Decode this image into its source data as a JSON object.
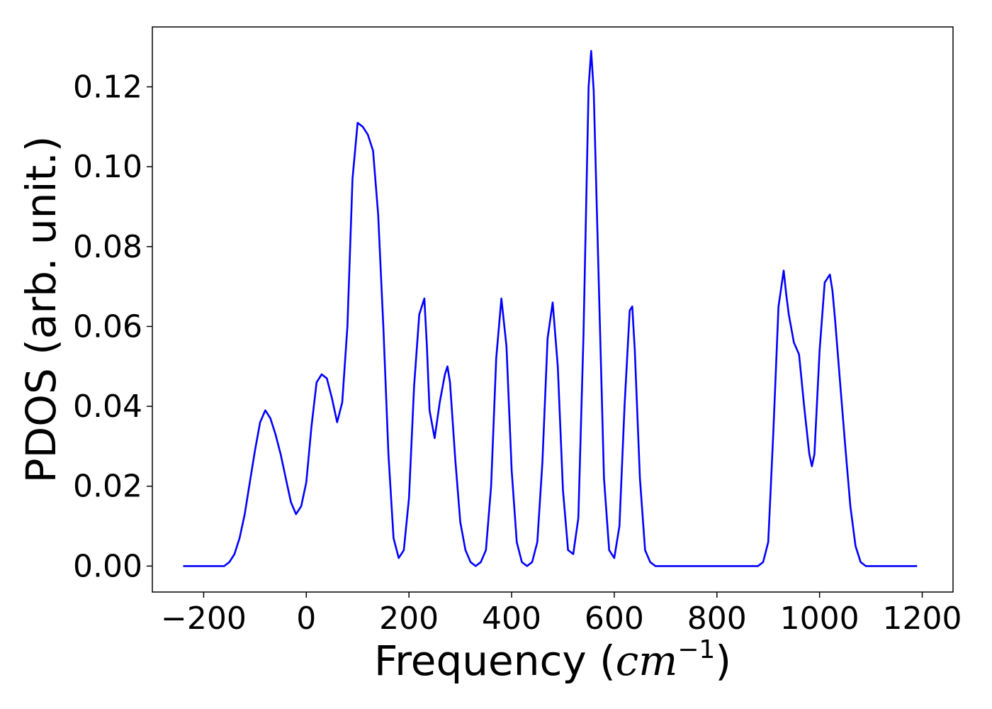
{
  "chart_data": {
    "type": "line",
    "title": "",
    "xlabel": "Frequency (",
    "xlabel_math": "cm",
    "xlabel_sup": "−1",
    "xlabel_close": ")",
    "ylabel": "PDOS (arb. unit.)",
    "xlim": [
      -300,
      1260
    ],
    "ylim": [
      -0.0065,
      0.135
    ],
    "xticks": [
      -200,
      0,
      200,
      400,
      600,
      800,
      1000,
      1200
    ],
    "xtick_labels": [
      "−200",
      "0",
      "200",
      "400",
      "600",
      "800",
      "1000",
      "1200"
    ],
    "yticks": [
      0.0,
      0.02,
      0.04,
      0.06,
      0.08,
      0.1,
      0.12
    ],
    "ytick_labels": [
      "0.00",
      "0.02",
      "0.04",
      "0.06",
      "0.08",
      "0.10",
      "0.12"
    ],
    "grid": false,
    "legend": "none",
    "line_color": "#0000ff",
    "series": [
      {
        "x": [
          -240,
          -160,
          -150,
          -140,
          -130,
          -120,
          -110,
          -100,
          -90,
          -80,
          -70,
          -60,
          -50,
          -40,
          -30,
          -20,
          -10,
          0,
          10,
          20,
          30,
          40,
          50,
          60,
          70,
          80,
          90,
          100,
          110,
          120,
          130,
          140,
          150,
          160,
          170,
          180,
          190,
          200,
          210,
          220,
          230,
          235,
          240,
          250,
          260,
          270,
          275,
          280,
          290,
          300,
          310,
          320,
          330,
          340,
          350,
          360,
          370,
          380,
          390,
          400,
          410,
          420,
          430,
          440,
          450,
          460,
          470,
          480,
          490,
          500,
          510,
          520,
          530,
          540,
          550,
          555,
          560,
          570,
          580,
          590,
          600,
          610,
          620,
          630,
          635,
          640,
          650,
          660,
          670,
          680,
          690,
          880,
          890,
          900,
          910,
          920,
          930,
          935,
          940,
          950,
          960,
          970,
          980,
          985,
          990,
          1000,
          1010,
          1020,
          1025,
          1030,
          1040,
          1050,
          1060,
          1070,
          1080,
          1090,
          1100,
          1110,
          1190
        ],
        "y": [
          0.0,
          0.0,
          0.001,
          0.003,
          0.007,
          0.013,
          0.021,
          0.029,
          0.036,
          0.039,
          0.037,
          0.033,
          0.028,
          0.022,
          0.016,
          0.013,
          0.015,
          0.021,
          0.035,
          0.046,
          0.048,
          0.047,
          0.042,
          0.036,
          0.041,
          0.06,
          0.097,
          0.111,
          0.11,
          0.108,
          0.104,
          0.088,
          0.06,
          0.028,
          0.007,
          0.002,
          0.004,
          0.017,
          0.045,
          0.063,
          0.067,
          0.055,
          0.039,
          0.032,
          0.041,
          0.048,
          0.05,
          0.046,
          0.027,
          0.011,
          0.004,
          0.001,
          0.0,
          0.001,
          0.004,
          0.02,
          0.052,
          0.067,
          0.055,
          0.024,
          0.006,
          0.001,
          0.0,
          0.001,
          0.006,
          0.026,
          0.057,
          0.066,
          0.05,
          0.019,
          0.004,
          0.003,
          0.012,
          0.058,
          0.12,
          0.129,
          0.119,
          0.07,
          0.022,
          0.004,
          0.002,
          0.01,
          0.04,
          0.064,
          0.065,
          0.054,
          0.022,
          0.004,
          0.001,
          0.0,
          0.0,
          0.0,
          0.001,
          0.006,
          0.034,
          0.065,
          0.074,
          0.068,
          0.063,
          0.056,
          0.053,
          0.04,
          0.028,
          0.025,
          0.028,
          0.054,
          0.071,
          0.073,
          0.069,
          0.062,
          0.046,
          0.03,
          0.015,
          0.005,
          0.001,
          0.0,
          0.0,
          0.0,
          0.0
        ]
      }
    ]
  }
}
